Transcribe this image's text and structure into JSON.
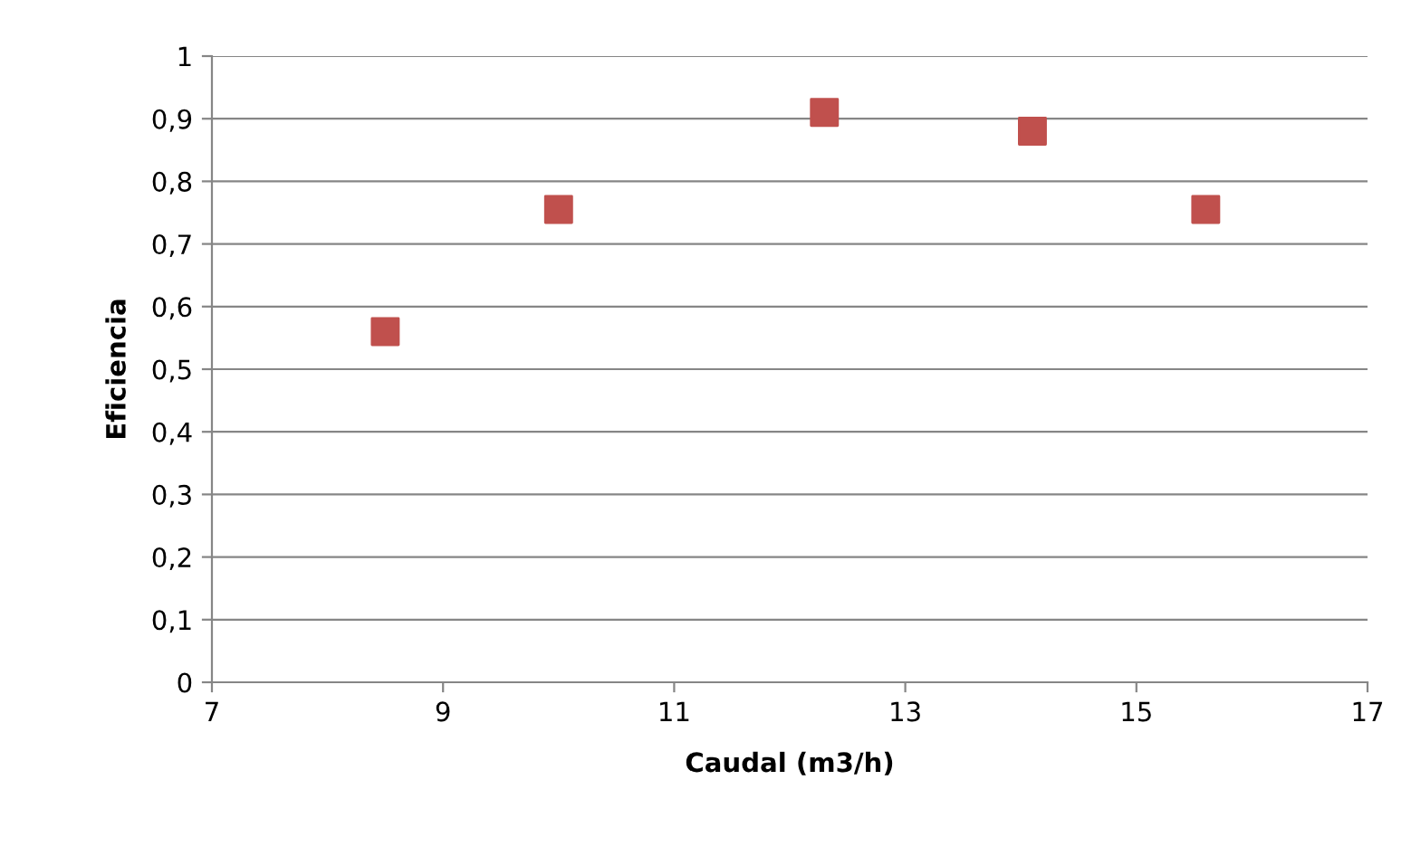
{
  "chart_data": {
    "type": "scatter",
    "xlabel": "Caudal (m3/h)",
    "ylabel": "Eficiencia",
    "x": [
      8.5,
      10,
      12.3,
      14.1,
      15.6
    ],
    "series": [
      {
        "color": "#c0504d",
        "values": [
          0.56,
          0.755,
          0.91,
          0.88,
          0.755
        ]
      }
    ],
    "xlim": [
      7,
      17
    ],
    "xticks": [
      7,
      9,
      11,
      13,
      15,
      17
    ],
    "ylim": [
      0,
      1
    ],
    "yticks": [
      0,
      {
        "value": 0.1,
        "label": "0,1"
      },
      {
        "value": 0.2,
        "label": "0,2"
      },
      {
        "value": 0.3,
        "label": "0,3"
      },
      {
        "value": 0.4,
        "label": "0,4"
      },
      {
        "value": 0.5,
        "label": "0,5"
      },
      {
        "value": 0.6,
        "label": "0,6"
      },
      {
        "value": 0.7,
        "label": "0,7"
      },
      {
        "value": 0.8,
        "label": "0,8"
      },
      {
        "value": 0.9,
        "label": "0,9"
      },
      1
    ],
    "grid": "y",
    "marker": "square"
  }
}
